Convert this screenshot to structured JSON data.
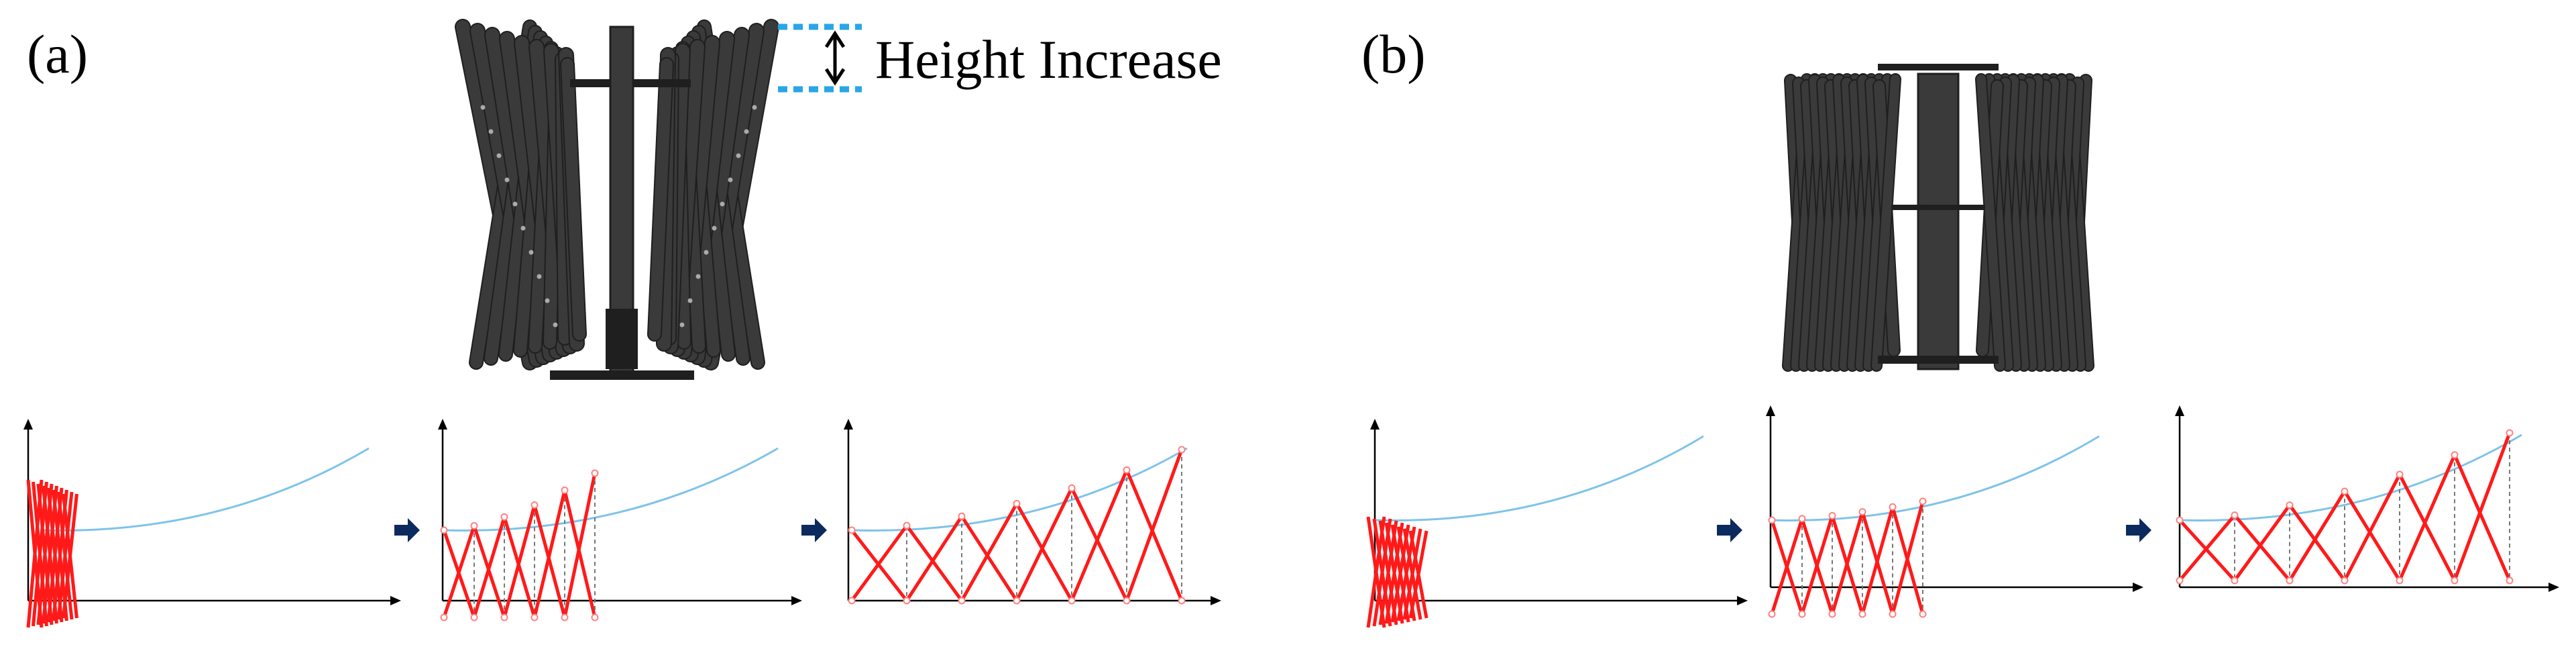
{
  "panels": [
    {
      "id": "a",
      "label": "(a)"
    },
    {
      "id": "b",
      "label": "(b)"
    }
  ],
  "annotation": {
    "text": "Height Increase"
  },
  "colors": {
    "mechanism": "#3a3a3a",
    "mechanism_dark": "#1f1f1f",
    "scissor_links": "#ff1a1a",
    "joint_marker": "#ff8080",
    "guide_curve": "#7ec3ea",
    "dashed_guides": "#777777",
    "height_indicator": "#2aa6e6",
    "step_arrow": "#0b2a5e",
    "axes": "#000000"
  },
  "icons": {
    "step_arrow": "right-arrow-icon",
    "height_marker": "double-headed-arrow-icon"
  },
  "sequence": [
    {
      "panel": "a",
      "stages": [
        "collapsed",
        "partially-deployed",
        "fully-deployed"
      ]
    },
    {
      "panel": "b",
      "stages": [
        "collapsed",
        "partially-deployed",
        "fully-deployed"
      ]
    }
  ]
}
